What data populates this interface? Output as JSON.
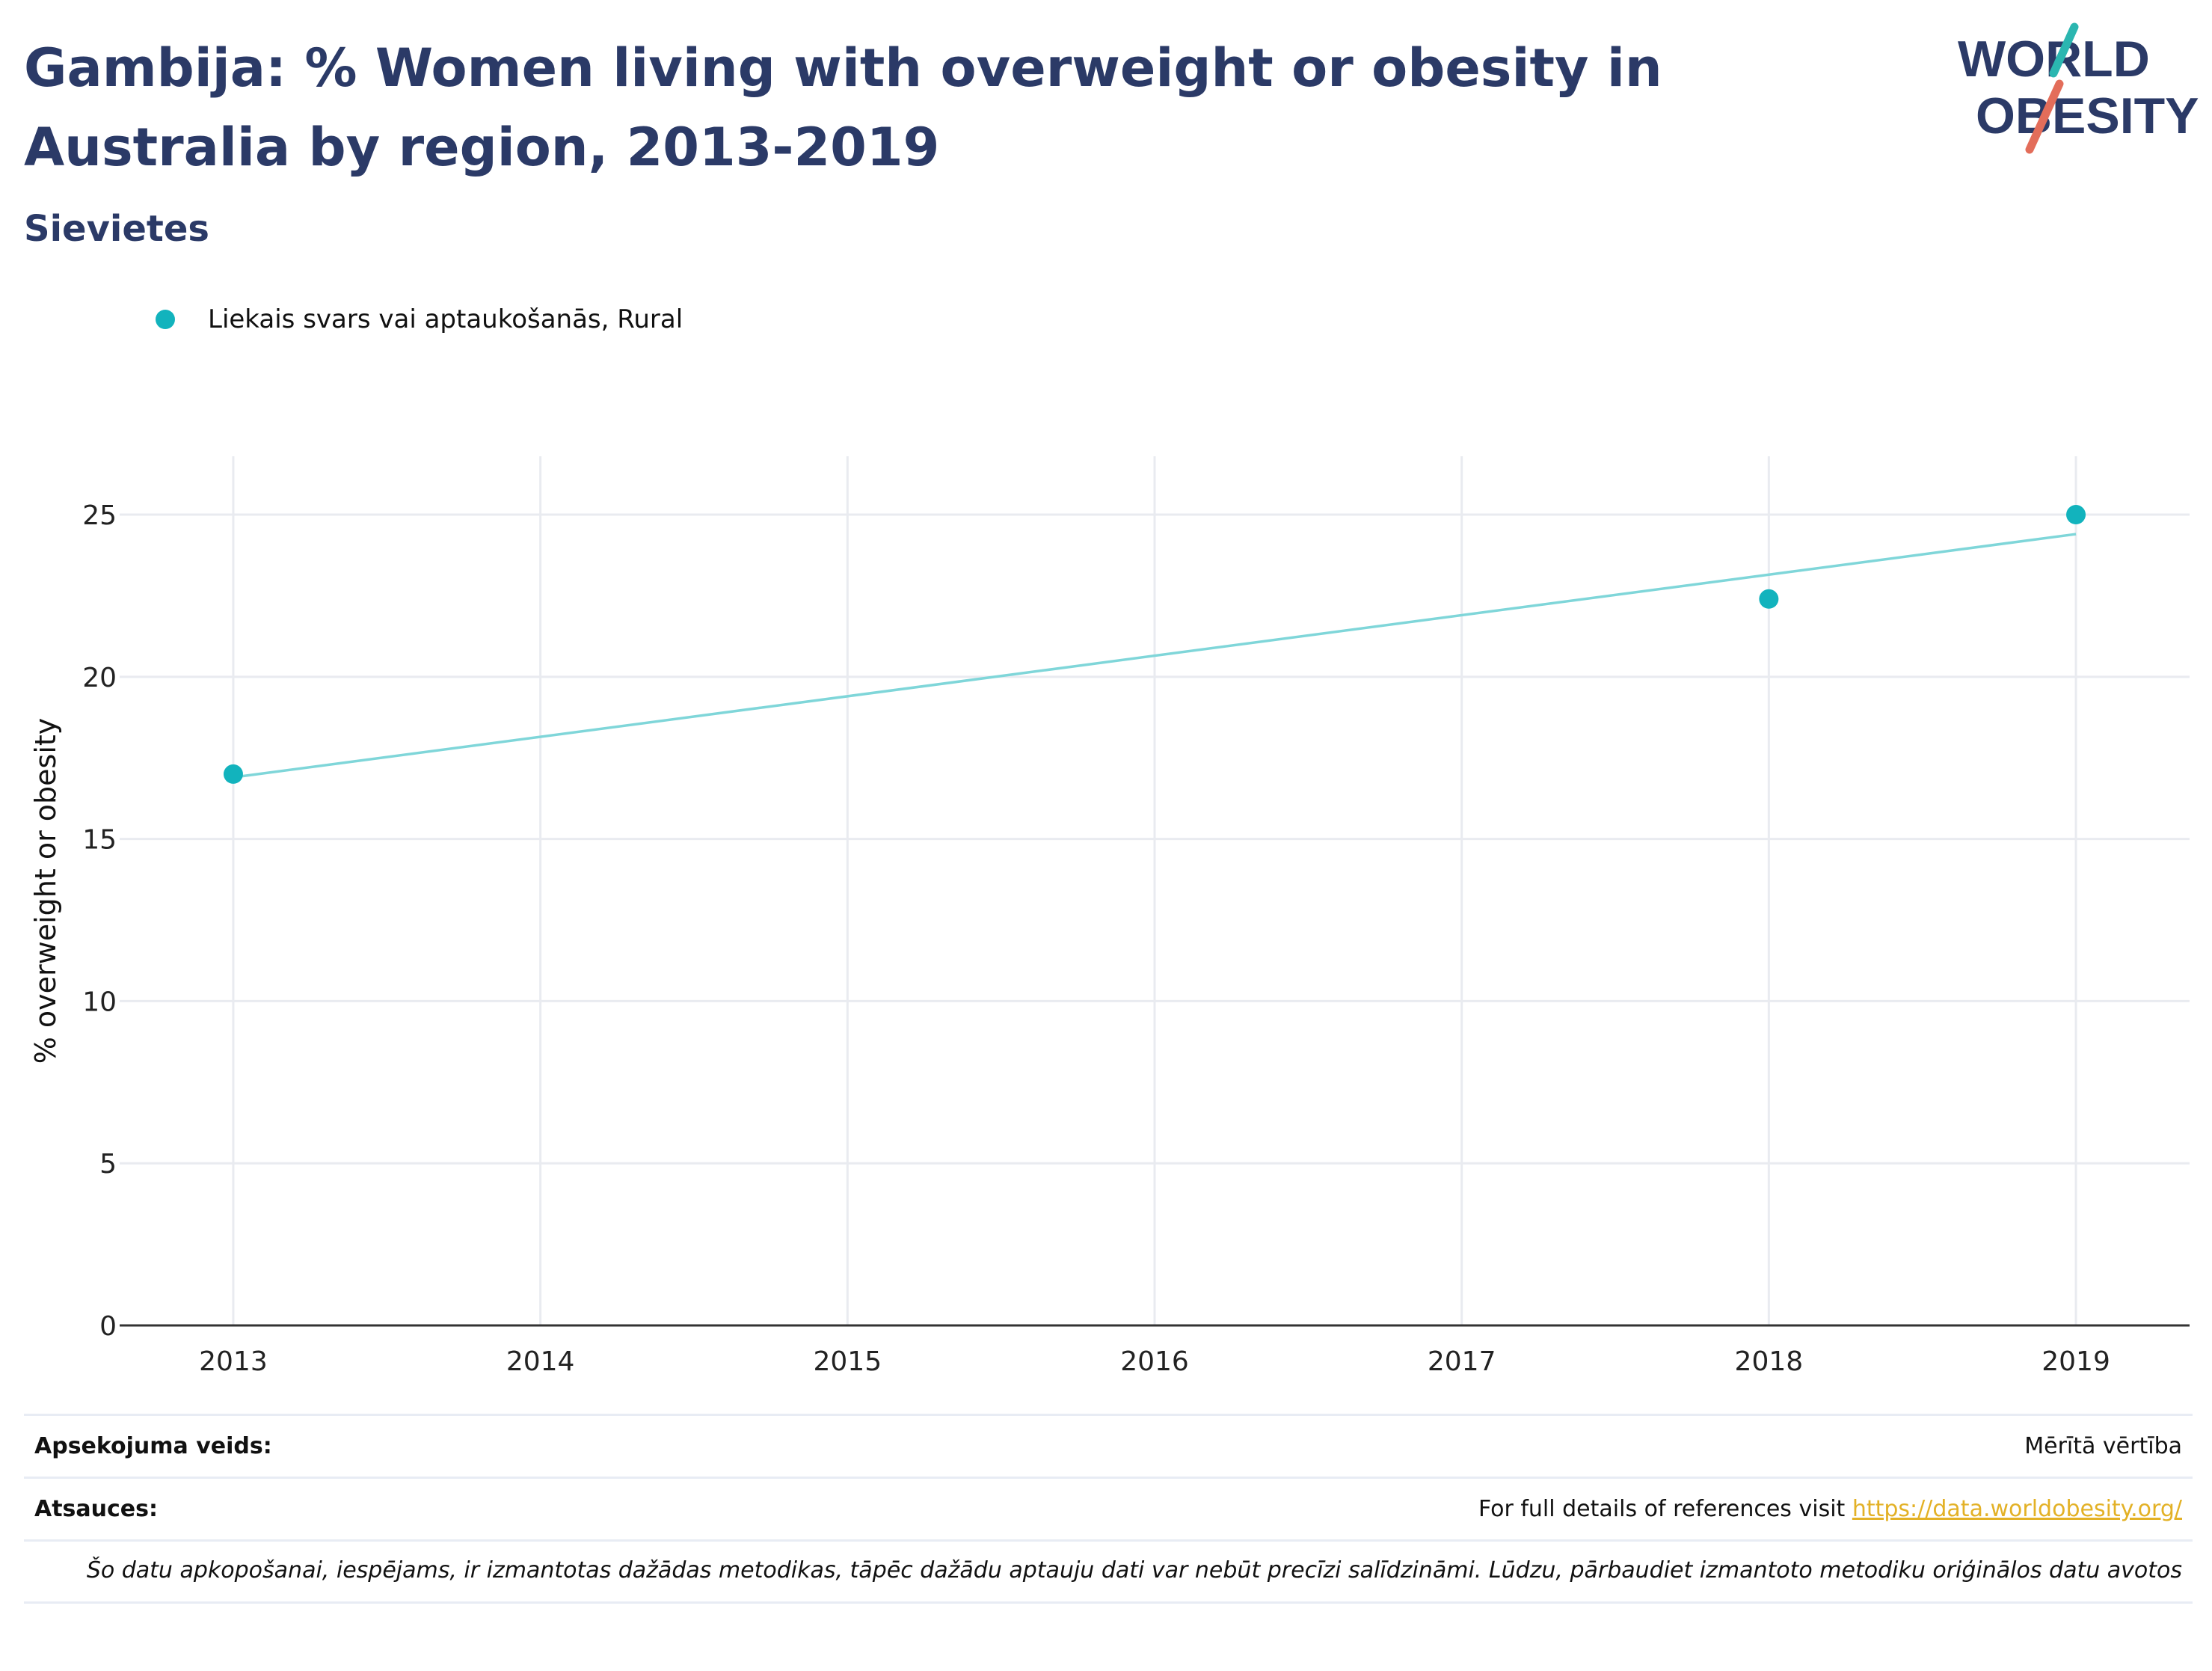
{
  "header": {
    "title": "Gambija: % Women living with overweight or obesity in Australia by region, 2013-2019",
    "subtitle": "Sievietes"
  },
  "logo": {
    "line1": "WORLD",
    "line2": "OBESITY"
  },
  "colors": {
    "series": "#12b3bd",
    "trend": "#7fd6d9",
    "title": "#2b3a67",
    "link": "#e3b126",
    "logo_teal": "#2bb6b0",
    "logo_coral": "#e36d5a"
  },
  "chart_data": {
    "type": "scatter",
    "ylabel": "% overweight or obesity",
    "xlim": [
      2012.63,
      2019.37
    ],
    "ylim": [
      0,
      26.8
    ],
    "yticks": [
      0,
      5,
      10,
      15,
      20,
      25
    ],
    "xticks": [
      2013,
      2014,
      2015,
      2016,
      2017,
      2018,
      2019
    ],
    "grid": true,
    "legend_position": "top-left",
    "series": [
      {
        "name": "Liekais svars vai aptaukošanās, Rural",
        "x": [
          2013,
          2018,
          2019
        ],
        "y": [
          17.0,
          22.4,
          25.0
        ]
      }
    ],
    "trendline": {
      "x": [
        2013,
        2019
      ],
      "y": [
        16.9,
        24.4
      ]
    }
  },
  "footer": {
    "survey_label": "Apsekojuma veids:",
    "survey_value": "Mērītā vērtība",
    "refs_label": "Atsauces:",
    "refs_text": "For full details of references visit ",
    "refs_link": "https://data.worldobesity.org/",
    "note": "Šo datu apkopošanai, iespējams, ir izmantotas dažādas metodikas, tāpēc dažādu aptauju dati var nebūt precīzi salīdzināmi. Lūdzu, pārbaudiet izmantoto metodiku oriģinālos datu avotos"
  }
}
